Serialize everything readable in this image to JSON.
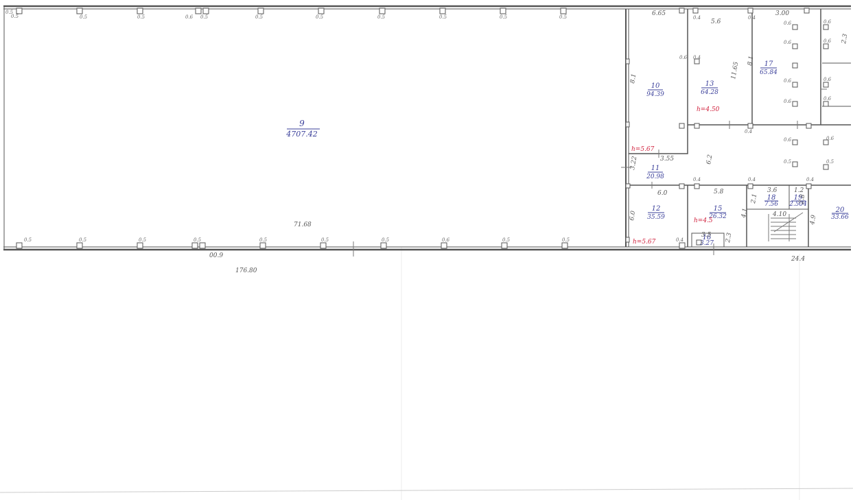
{
  "main_hall": {
    "number": "9",
    "area": "4707.42"
  },
  "rooms": [
    {
      "id": "r10",
      "number": "10",
      "area": "94.39"
    },
    {
      "id": "r13",
      "number": "13",
      "area": "64.28"
    },
    {
      "id": "r17",
      "number": "17",
      "area": "65.84"
    },
    {
      "id": "r11",
      "number": "11",
      "area": "20.98"
    },
    {
      "id": "r12",
      "number": "12",
      "area": "35.59"
    },
    {
      "id": "r15",
      "number": "15",
      "area": "26.32"
    },
    {
      "id": "r18",
      "number": "18",
      "area": "7.56"
    },
    {
      "id": "r19",
      "number": "19",
      "area": "2.504"
    },
    {
      "id": "r20",
      "number": "20",
      "area": "33.66"
    },
    {
      "id": "r16",
      "number": "16",
      "area": "3.27"
    }
  ],
  "heights": [
    {
      "id": "h1",
      "label": "h=5.67"
    },
    {
      "id": "h2",
      "label": "h=4.50"
    },
    {
      "id": "h3",
      "label": "h=4.5"
    },
    {
      "id": "h4",
      "label": "h=5.67"
    }
  ],
  "dimensions": {
    "total_length": "176.80",
    "hall_width": "71.68",
    "left_bottom": "00.9",
    "right_bottom": "24.4",
    "d_665": "6.65",
    "d_56": "5.6",
    "d_1165": "11.65",
    "d_300": "3.00",
    "d_18": "8.1",
    "d_62": "6.2",
    "d_355": "3.55",
    "d_322": "3.22",
    "d_60": "6.0",
    "d_58": "5.8",
    "d_41a": "4.1",
    "d_21": "2.1",
    "d_36": "3.6",
    "d_12": "1.2",
    "d_410": "4.10",
    "d_28": "2.8",
    "d_32": "3.2",
    "d_35": "3.5",
    "d_49": "4.9",
    "d_23": "2.3"
  },
  "columns_label": "0.5",
  "column_small_label": "0.4",
  "column_alt_label": "0.6"
}
